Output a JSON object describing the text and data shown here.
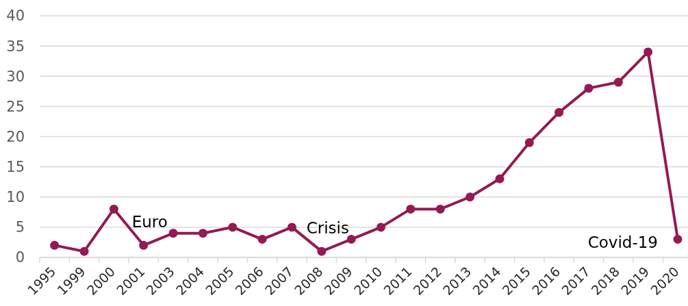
{
  "chart_data": {
    "type": "line",
    "categories": [
      "1995",
      "1999",
      "2000",
      "2001",
      "2003",
      "2004",
      "2005",
      "2006",
      "2007",
      "2008",
      "2009",
      "2010",
      "2011",
      "2012",
      "2013",
      "2014",
      "2015",
      "2016",
      "2017",
      "2018",
      "2019",
      "2020"
    ],
    "series": [
      {
        "color": "#931a52",
        "values": [
          2,
          1,
          8,
          2,
          4,
          4,
          5,
          3,
          5,
          1,
          3,
          5,
          8,
          8,
          10,
          13,
          19,
          24,
          28,
          29,
          34,
          3
        ]
      }
    ],
    "ylim": [
      0,
      40
    ],
    "yticks": [
      0,
      5,
      10,
      15,
      20,
      25,
      30,
      35,
      40
    ],
    "grid": "y",
    "marker": "circle",
    "line_style": "solid",
    "legend": false,
    "annotations": [
      {
        "text": "Euro",
        "x": "2001",
        "y": 2
      },
      {
        "text": "Crisis",
        "x": "2008",
        "y": 1
      },
      {
        "text": "Covid-19",
        "x": "2020",
        "y": 3
      }
    ]
  }
}
